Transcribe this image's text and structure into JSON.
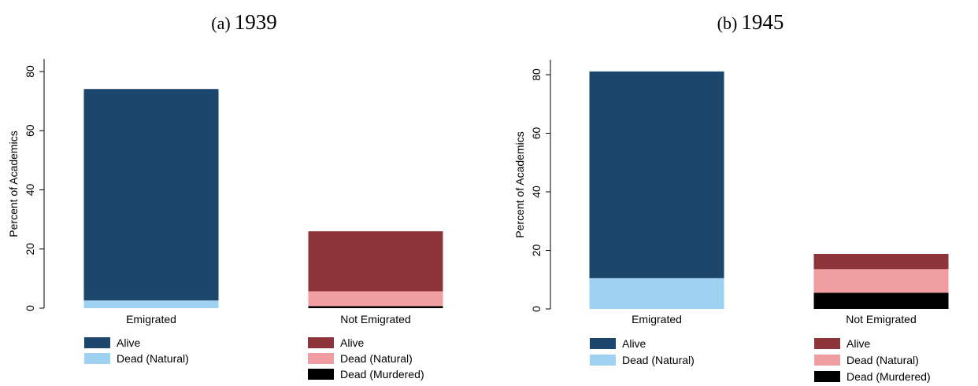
{
  "panels": [
    {
      "prefix": "(a)",
      "year": "1939"
    },
    {
      "prefix": "(b)",
      "year": "1945"
    }
  ],
  "chart_data": [
    {
      "type": "bar",
      "stacked": true,
      "title": "(a) 1939",
      "ylabel": "Percent of Academics",
      "xlabel": "",
      "ylim": [
        0,
        84
      ],
      "yticks": [
        0,
        20,
        40,
        60,
        80
      ],
      "categories": [
        "Emigrated",
        "Not Emigrated"
      ],
      "stacks": [
        {
          "category": "Emigrated",
          "segments": [
            {
              "name": "Dead (Natural)",
              "value": 2.6,
              "color": "#9fd1f1"
            },
            {
              "name": "Alive",
              "value": 71.5,
              "color": "#1d466d"
            }
          ]
        },
        {
          "category": "Not Emigrated",
          "segments": [
            {
              "name": "Dead (Murdered)",
              "value": 0.7,
              "color": "#000000"
            },
            {
              "name": "Dead (Natural)",
              "value": 5.0,
              "color": "#f09ea2"
            },
            {
              "name": "Alive",
              "value": 20.3,
              "color": "#8e353c"
            }
          ]
        }
      ],
      "legend": [
        [
          {
            "label": "Alive",
            "color": "#1d466d"
          },
          {
            "label": "Dead (Natural)",
            "color": "#9fd1f1"
          }
        ],
        [
          {
            "label": "Alive",
            "color": "#8e353c"
          },
          {
            "label": "Dead (Natural)",
            "color": "#f09ea2"
          },
          {
            "label": "Dead (Murdered)",
            "color": "#000000"
          }
        ]
      ],
      "legend_placement": "bottom"
    },
    {
      "type": "bar",
      "stacked": true,
      "title": "(b) 1945",
      "ylabel": "Percent of Academics",
      "xlabel": "",
      "ylim": [
        0,
        84
      ],
      "yticks": [
        0,
        20,
        40,
        60,
        80
      ],
      "categories": [
        "Emigrated",
        "Not Emigrated"
      ],
      "stacks": [
        {
          "category": "Emigrated",
          "segments": [
            {
              "name": "Dead (Natural)",
              "value": 10.5,
              "color": "#9fd1f1"
            },
            {
              "name": "Alive",
              "value": 70.6,
              "color": "#1d466d"
            }
          ]
        },
        {
          "category": "Not Emigrated",
          "segments": [
            {
              "name": "Dead (Murdered)",
              "value": 5.5,
              "color": "#000000"
            },
            {
              "name": "Dead (Natural)",
              "value": 8.1,
              "color": "#f09ea2"
            },
            {
              "name": "Alive",
              "value": 5.2,
              "color": "#8e353c"
            }
          ]
        }
      ],
      "legend": [
        [
          {
            "label": "Alive",
            "color": "#1d466d"
          },
          {
            "label": "Dead (Natural)",
            "color": "#9fd1f1"
          }
        ],
        [
          {
            "label": "Alive",
            "color": "#8e353c"
          },
          {
            "label": "Dead (Natural)",
            "color": "#f09ea2"
          },
          {
            "label": "Dead (Murdered)",
            "color": "#000000"
          }
        ]
      ],
      "legend_placement": "bottom"
    }
  ]
}
